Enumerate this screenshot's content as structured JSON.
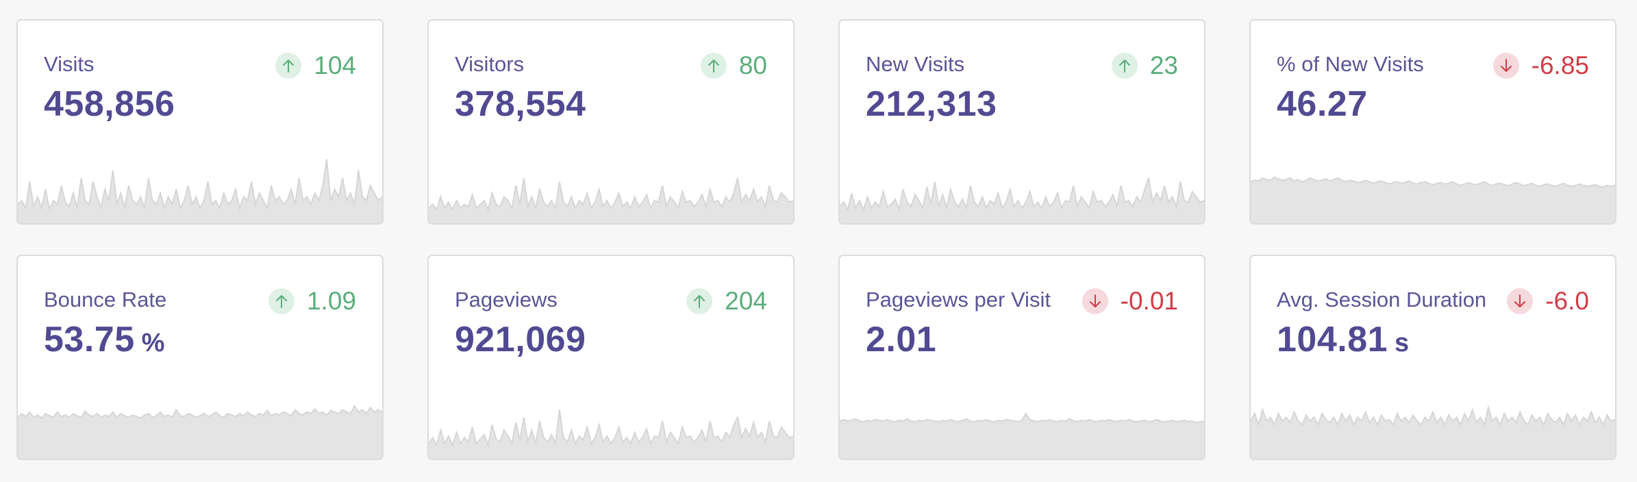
{
  "cards": [
    {
      "title": "Visits",
      "value": "458,856",
      "unit": "",
      "delta": "104",
      "direction": "up",
      "arrow_icon": "arrow-up-icon",
      "sparkline": {
        "style": "spiky",
        "values": [
          0.25,
          0.3,
          0.2,
          0.55,
          0.22,
          0.35,
          0.2,
          0.45,
          0.18,
          0.3,
          0.25,
          0.5,
          0.28,
          0.22,
          0.4,
          0.2,
          0.6,
          0.3,
          0.25,
          0.55,
          0.35,
          0.2,
          0.45,
          0.3,
          0.7,
          0.25,
          0.4,
          0.2,
          0.5,
          0.3,
          0.25,
          0.35,
          0.2,
          0.6,
          0.3,
          0.25,
          0.4,
          0.2,
          0.35,
          0.25,
          0.45,
          0.2,
          0.3,
          0.5,
          0.25,
          0.35,
          0.2,
          0.3,
          0.55,
          0.25,
          0.3,
          0.2,
          0.4,
          0.25,
          0.3,
          0.45,
          0.2,
          0.35,
          0.3,
          0.55,
          0.25,
          0.4,
          0.3,
          0.2,
          0.5,
          0.3,
          0.35,
          0.25,
          0.3,
          0.45,
          0.25,
          0.6,
          0.3,
          0.35,
          0.25,
          0.4,
          0.3,
          0.5,
          0.85,
          0.3,
          0.45,
          0.35,
          0.6,
          0.3,
          0.4,
          0.25,
          0.7,
          0.35,
          0.3,
          0.5,
          0.4,
          0.3,
          0.35
        ]
      }
    },
    {
      "title": "Visitors",
      "value": "378,554",
      "unit": "",
      "delta": "80",
      "direction": "up",
      "arrow_icon": "arrow-up-icon",
      "sparkline": {
        "style": "spiky",
        "values": [
          0.2,
          0.25,
          0.18,
          0.35,
          0.2,
          0.28,
          0.18,
          0.3,
          0.2,
          0.25,
          0.22,
          0.38,
          0.2,
          0.25,
          0.3,
          0.18,
          0.4,
          0.25,
          0.22,
          0.35,
          0.3,
          0.2,
          0.5,
          0.25,
          0.6,
          0.22,
          0.35,
          0.2,
          0.45,
          0.28,
          0.22,
          0.3,
          0.2,
          0.55,
          0.28,
          0.22,
          0.35,
          0.2,
          0.3,
          0.25,
          0.4,
          0.2,
          0.28,
          0.45,
          0.22,
          0.3,
          0.2,
          0.28,
          0.4,
          0.22,
          0.28,
          0.2,
          0.35,
          0.22,
          0.28,
          0.38,
          0.2,
          0.3,
          0.28,
          0.5,
          0.22,
          0.35,
          0.28,
          0.2,
          0.42,
          0.28,
          0.3,
          0.22,
          0.28,
          0.38,
          0.22,
          0.45,
          0.28,
          0.3,
          0.22,
          0.35,
          0.28,
          0.4,
          0.6,
          0.28,
          0.38,
          0.3,
          0.45,
          0.28,
          0.35,
          0.22,
          0.5,
          0.3,
          0.28,
          0.4,
          0.35,
          0.28,
          0.3
        ]
      }
    },
    {
      "title": "New Visits",
      "value": "212,313",
      "unit": "",
      "delta": "23",
      "direction": "up",
      "arrow_icon": "arrow-up-icon",
      "sparkline": {
        "style": "spiky",
        "values": [
          0.22,
          0.28,
          0.18,
          0.4,
          0.2,
          0.3,
          0.18,
          0.35,
          0.2,
          0.28,
          0.22,
          0.42,
          0.22,
          0.25,
          0.32,
          0.18,
          0.45,
          0.28,
          0.22,
          0.38,
          0.3,
          0.2,
          0.48,
          0.25,
          0.55,
          0.22,
          0.38,
          0.2,
          0.45,
          0.28,
          0.22,
          0.32,
          0.2,
          0.5,
          0.28,
          0.22,
          0.35,
          0.2,
          0.3,
          0.25,
          0.4,
          0.2,
          0.28,
          0.45,
          0.22,
          0.3,
          0.2,
          0.28,
          0.42,
          0.22,
          0.28,
          0.2,
          0.35,
          0.22,
          0.28,
          0.4,
          0.2,
          0.3,
          0.28,
          0.5,
          0.22,
          0.35,
          0.28,
          0.2,
          0.42,
          0.28,
          0.3,
          0.22,
          0.28,
          0.38,
          0.22,
          0.5,
          0.28,
          0.3,
          0.22,
          0.35,
          0.28,
          0.45,
          0.6,
          0.28,
          0.4,
          0.3,
          0.5,
          0.28,
          0.35,
          0.22,
          0.55,
          0.3,
          0.28,
          0.42,
          0.35,
          0.28,
          0.3
        ]
      }
    },
    {
      "title": "% of New Visits",
      "value": "46.27",
      "unit": "",
      "delta": "-6.85",
      "direction": "down",
      "arrow_icon": "arrow-down-icon",
      "sparkline": {
        "style": "flat",
        "values": [
          0.55,
          0.57,
          0.56,
          0.6,
          0.58,
          0.57,
          0.61,
          0.59,
          0.57,
          0.58,
          0.6,
          0.56,
          0.58,
          0.55,
          0.57,
          0.6,
          0.58,
          0.56,
          0.57,
          0.59,
          0.56,
          0.58,
          0.6,
          0.57,
          0.55,
          0.57,
          0.56,
          0.54,
          0.55,
          0.57,
          0.55,
          0.53,
          0.55,
          0.56,
          0.54,
          0.52,
          0.54,
          0.55,
          0.53,
          0.54,
          0.56,
          0.53,
          0.52,
          0.54,
          0.55,
          0.53,
          0.51,
          0.53,
          0.54,
          0.52,
          0.53,
          0.55,
          0.52,
          0.5,
          0.52,
          0.54,
          0.52,
          0.51,
          0.53,
          0.55,
          0.52,
          0.5,
          0.52,
          0.53,
          0.51,
          0.5,
          0.52,
          0.54,
          0.52,
          0.5,
          0.51,
          0.53,
          0.5,
          0.49,
          0.51,
          0.52,
          0.5,
          0.49,
          0.51,
          0.53,
          0.5,
          0.49,
          0.5,
          0.52,
          0.5,
          0.49,
          0.5,
          0.51,
          0.49,
          0.48,
          0.5,
          0.49,
          0.5
        ]
      }
    },
    {
      "title": "Bounce Rate",
      "value": "53.75",
      "unit": "%",
      "delta": "1.09",
      "direction": "up",
      "arrow_icon": "arrow-up-icon",
      "sparkline": {
        "style": "flat",
        "values": [
          0.55,
          0.6,
          0.56,
          0.62,
          0.55,
          0.58,
          0.54,
          0.6,
          0.57,
          0.55,
          0.62,
          0.56,
          0.58,
          0.55,
          0.6,
          0.57,
          0.55,
          0.63,
          0.58,
          0.56,
          0.6,
          0.55,
          0.58,
          0.56,
          0.62,
          0.55,
          0.6,
          0.57,
          0.55,
          0.58,
          0.56,
          0.54,
          0.58,
          0.6,
          0.55,
          0.57,
          0.62,
          0.56,
          0.58,
          0.55,
          0.65,
          0.57,
          0.56,
          0.6,
          0.58,
          0.55,
          0.57,
          0.6,
          0.56,
          0.58,
          0.62,
          0.57,
          0.55,
          0.6,
          0.58,
          0.56,
          0.6,
          0.57,
          0.62,
          0.58,
          0.56,
          0.6,
          0.58,
          0.64,
          0.57,
          0.6,
          0.58,
          0.62,
          0.6,
          0.57,
          0.65,
          0.6,
          0.58,
          0.62,
          0.6,
          0.66,
          0.6,
          0.62,
          0.58,
          0.64,
          0.62,
          0.6,
          0.65,
          0.62,
          0.6,
          0.7,
          0.62,
          0.65,
          0.6,
          0.68,
          0.62,
          0.65,
          0.62
        ]
      }
    },
    {
      "title": "Pageviews",
      "value": "921,069",
      "unit": "",
      "delta": "204",
      "direction": "up",
      "arrow_icon": "arrow-up-icon",
      "sparkline": {
        "style": "spiky",
        "values": [
          0.2,
          0.28,
          0.18,
          0.38,
          0.2,
          0.3,
          0.18,
          0.35,
          0.2,
          0.28,
          0.22,
          0.42,
          0.2,
          0.26,
          0.32,
          0.18,
          0.45,
          0.26,
          0.22,
          0.38,
          0.3,
          0.2,
          0.48,
          0.25,
          0.55,
          0.22,
          0.38,
          0.2,
          0.5,
          0.28,
          0.22,
          0.32,
          0.2,
          0.65,
          0.28,
          0.22,
          0.38,
          0.2,
          0.3,
          0.25,
          0.42,
          0.2,
          0.28,
          0.45,
          0.22,
          0.3,
          0.2,
          0.28,
          0.42,
          0.22,
          0.28,
          0.2,
          0.35,
          0.22,
          0.28,
          0.4,
          0.2,
          0.3,
          0.28,
          0.5,
          0.22,
          0.35,
          0.28,
          0.2,
          0.42,
          0.28,
          0.3,
          0.22,
          0.28,
          0.38,
          0.22,
          0.5,
          0.28,
          0.3,
          0.22,
          0.35,
          0.28,
          0.45,
          0.55,
          0.28,
          0.4,
          0.3,
          0.48,
          0.28,
          0.35,
          0.22,
          0.5,
          0.3,
          0.28,
          0.42,
          0.35,
          0.28,
          0.3
        ]
      }
    },
    {
      "title": "Pageviews per Visit",
      "value": "2.01",
      "unit": "",
      "delta": "-0.01",
      "direction": "down",
      "arrow_icon": "arrow-down-icon",
      "sparkline": {
        "style": "flat",
        "values": [
          0.5,
          0.52,
          0.5,
          0.51,
          0.53,
          0.5,
          0.49,
          0.51,
          0.5,
          0.52,
          0.51,
          0.5,
          0.52,
          0.5,
          0.49,
          0.51,
          0.5,
          0.53,
          0.5,
          0.49,
          0.51,
          0.5,
          0.52,
          0.51,
          0.5,
          0.49,
          0.51,
          0.5,
          0.52,
          0.5,
          0.49,
          0.51,
          0.53,
          0.5,
          0.49,
          0.51,
          0.5,
          0.52,
          0.5,
          0.49,
          0.51,
          0.5,
          0.52,
          0.51,
          0.5,
          0.49,
          0.51,
          0.6,
          0.52,
          0.5,
          0.49,
          0.51,
          0.5,
          0.52,
          0.5,
          0.49,
          0.51,
          0.5,
          0.53,
          0.5,
          0.49,
          0.51,
          0.5,
          0.52,
          0.5,
          0.49,
          0.51,
          0.5,
          0.52,
          0.5,
          0.49,
          0.51,
          0.5,
          0.52,
          0.5,
          0.49,
          0.5,
          0.51,
          0.49,
          0.5,
          0.52,
          0.5,
          0.49,
          0.5,
          0.51,
          0.49,
          0.5,
          0.51,
          0.49,
          0.5,
          0.48,
          0.49,
          0.5
        ]
      }
    },
    {
      "title": "Avg. Session Duration",
      "value": "104.81",
      "unit": "s",
      "delta": "-6.0",
      "direction": "down",
      "arrow_icon": "arrow-down-icon",
      "sparkline": {
        "style": "jagged",
        "values": [
          0.5,
          0.6,
          0.45,
          0.65,
          0.5,
          0.55,
          0.45,
          0.6,
          0.5,
          0.55,
          0.48,
          0.62,
          0.5,
          0.45,
          0.58,
          0.5,
          0.55,
          0.45,
          0.6,
          0.52,
          0.48,
          0.55,
          0.45,
          0.6,
          0.5,
          0.58,
          0.45,
          0.55,
          0.5,
          0.62,
          0.48,
          0.55,
          0.45,
          0.58,
          0.5,
          0.52,
          0.45,
          0.6,
          0.5,
          0.55,
          0.48,
          0.58,
          0.5,
          0.45,
          0.55,
          0.5,
          0.62,
          0.48,
          0.55,
          0.45,
          0.58,
          0.5,
          0.55,
          0.45,
          0.6,
          0.5,
          0.65,
          0.48,
          0.55,
          0.45,
          0.68,
          0.5,
          0.55,
          0.45,
          0.6,
          0.5,
          0.55,
          0.48,
          0.62,
          0.5,
          0.45,
          0.58,
          0.5,
          0.55,
          0.45,
          0.6,
          0.52,
          0.48,
          0.55,
          0.45,
          0.6,
          0.5,
          0.58,
          0.45,
          0.55,
          0.5,
          0.62,
          0.48,
          0.55,
          0.45,
          0.58,
          0.5,
          0.52
        ]
      }
    }
  ],
  "colors": {
    "title": "#5a5597",
    "value": "#514a92",
    "up": "#5aae7a",
    "down": "#d33b45",
    "spark_fill": "#e4e4e4",
    "spark_line": "#d6d6d6"
  }
}
